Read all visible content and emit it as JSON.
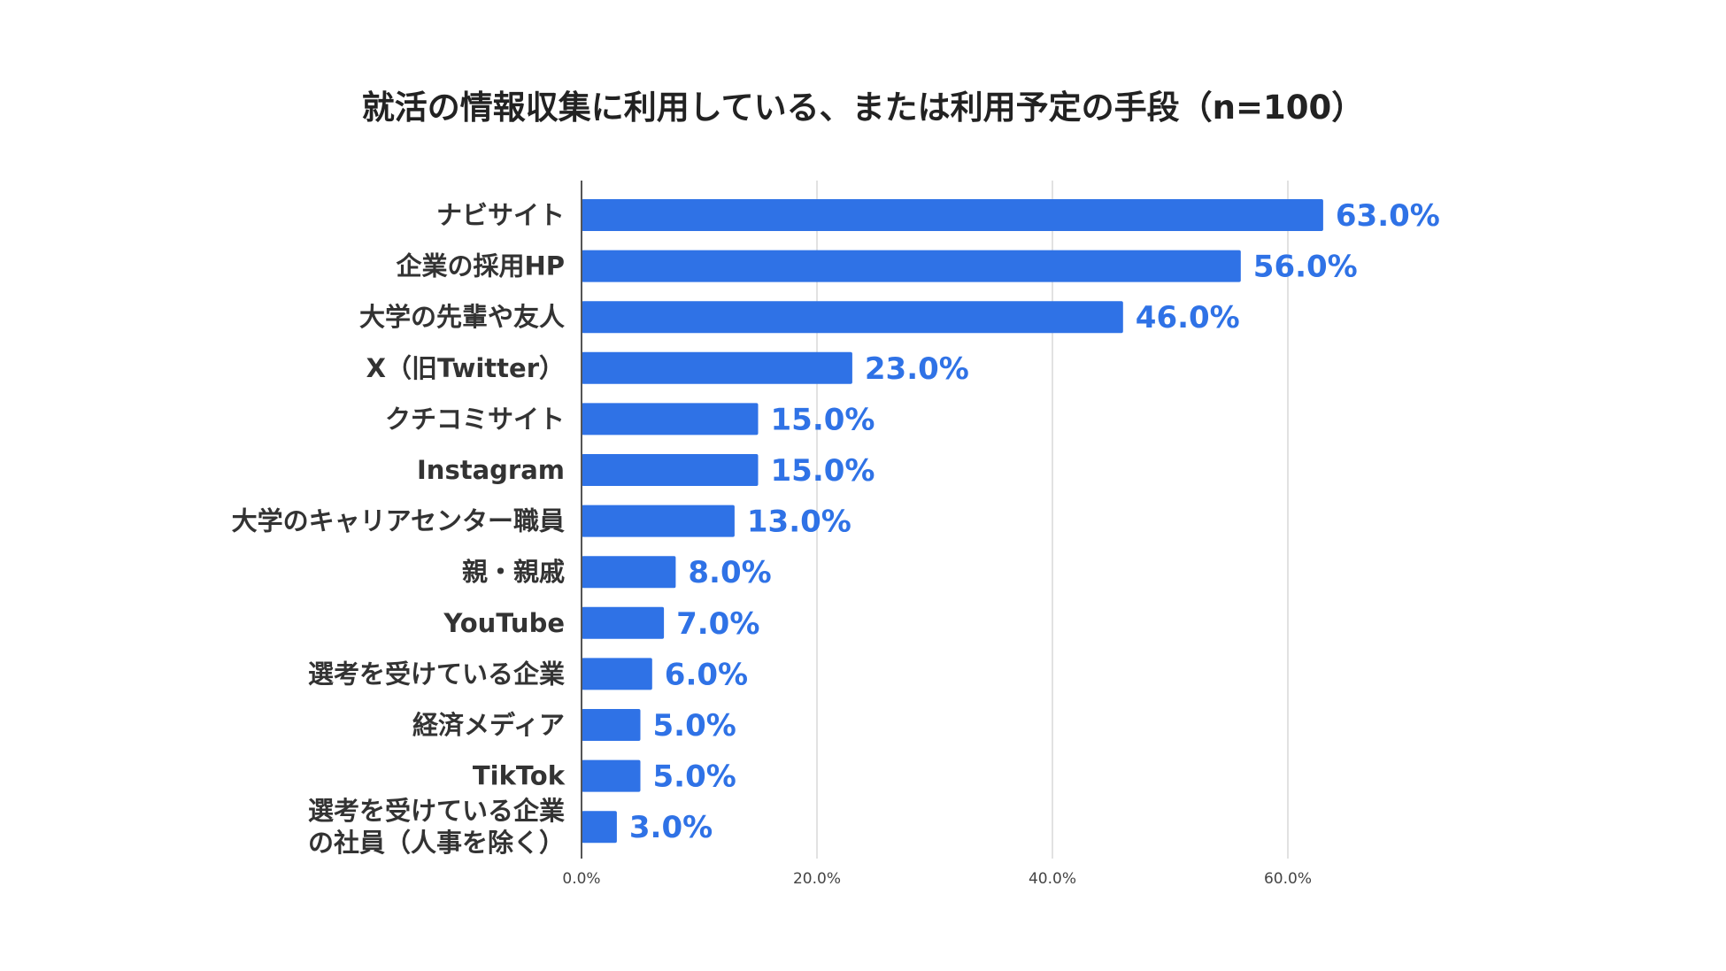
{
  "chart_data": {
    "type": "bar",
    "orientation": "horizontal",
    "title": "就活の情報収集に利用している、または利用予定の手段（n=100）",
    "categories": [
      [
        "ナビサイト"
      ],
      [
        "企業の採用HP"
      ],
      [
        "大学の先輩や友人"
      ],
      [
        "X（旧Twitter）"
      ],
      [
        "クチコミサイト"
      ],
      [
        "Instagram"
      ],
      [
        "大学のキャリアセンター職員"
      ],
      [
        "親・親戚"
      ],
      [
        "YouTube"
      ],
      [
        "選考を受けている企業"
      ],
      [
        "経済メディア"
      ],
      [
        "TikTok"
      ],
      [
        "選考を受けている企業",
        "の社員（人事を除く）"
      ]
    ],
    "values": [
      63.0,
      56.0,
      46.0,
      23.0,
      15.0,
      15.0,
      13.0,
      8.0,
      7.0,
      6.0,
      5.0,
      5.0,
      3.0
    ],
    "value_labels": [
      "63.0%",
      "56.0%",
      "46.0%",
      "23.0%",
      "15.0%",
      "15.0%",
      "13.0%",
      "8.0%",
      "7.0%",
      "6.0%",
      "5.0%",
      "5.0%",
      "3.0%"
    ],
    "xticks": [
      0,
      20,
      40,
      60
    ],
    "xtick_labels": [
      "0.0%",
      "20.0%",
      "40.0%",
      "60.0%"
    ],
    "xlim": [
      0,
      70
    ],
    "xlabel": "",
    "ylabel": "",
    "grid": true,
    "legend": "none",
    "colors": {
      "bar": "#2f72e6",
      "value_label": "#2f72e6",
      "grid": "#d9d9d9",
      "axis": "#555555"
    }
  }
}
